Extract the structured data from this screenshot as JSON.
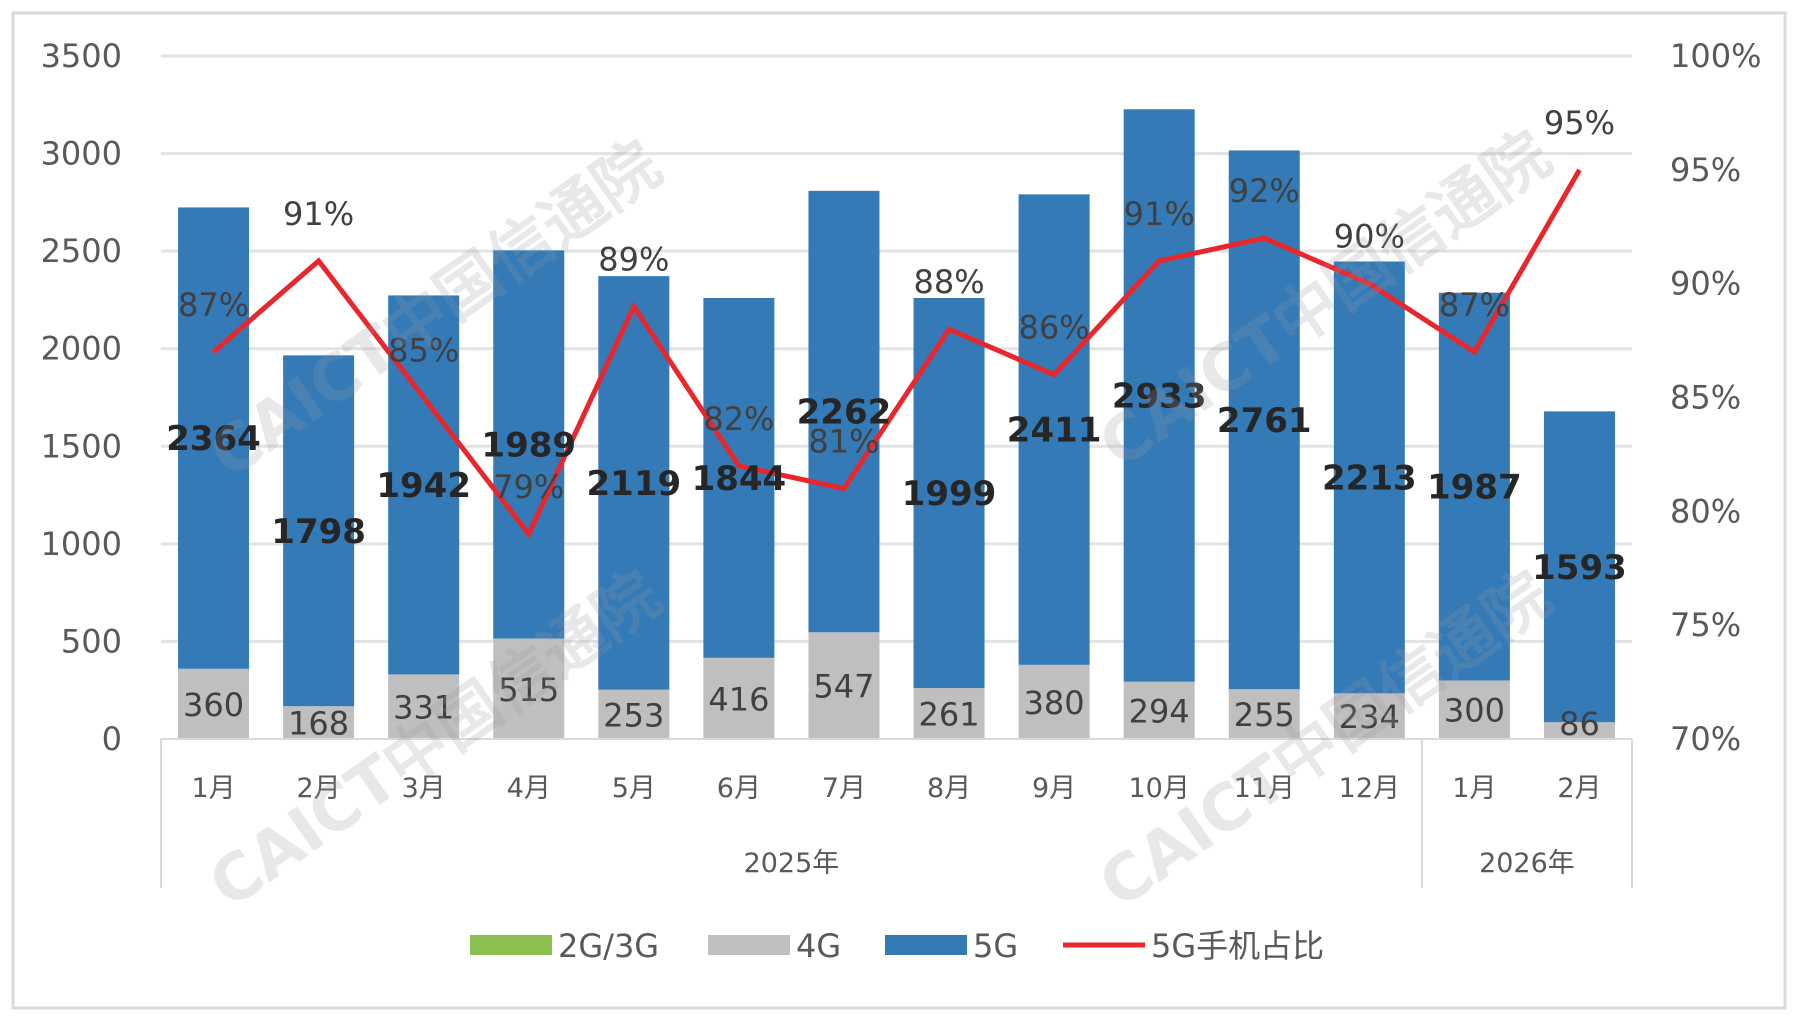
{
  "chart_data": {
    "type": "bar",
    "stacked": true,
    "categories": [
      "1月",
      "2月",
      "3月",
      "4月",
      "5月",
      "6月",
      "7月",
      "8月",
      "9月",
      "10月",
      "11月",
      "12月",
      "1月",
      "2月"
    ],
    "groups": [
      {
        "label": "2025年",
        "count": 12
      },
      {
        "label": "2026年",
        "count": 2
      }
    ],
    "series": [
      {
        "name": "2G/3G",
        "type": "bar",
        "color": "#8CC152",
        "values": [
          0,
          0,
          0,
          0,
          0,
          0,
          0,
          0,
          0,
          0,
          0,
          0,
          0,
          0
        ]
      },
      {
        "name": "4G",
        "type": "bar",
        "color": "#BFBFBF",
        "values": [
          360,
          168,
          331,
          515,
          253,
          416,
          547,
          261,
          380,
          294,
          255,
          234,
          300,
          86
        ]
      },
      {
        "name": "5G",
        "type": "bar",
        "color": "#337AB7",
        "values": [
          2364,
          1798,
          1942,
          1989,
          2119,
          1844,
          2262,
          1999,
          2411,
          2933,
          2761,
          2213,
          1987,
          1593
        ]
      },
      {
        "name": "5G手机占比",
        "type": "line",
        "axis": "right",
        "color": "#E8262B",
        "values": [
          87,
          91,
          85,
          79,
          89,
          82,
          81,
          88,
          86,
          91,
          92,
          90,
          87,
          95
        ]
      }
    ],
    "y_left": {
      "range": [
        0,
        3500
      ],
      "ticks": [
        "0",
        "500",
        "1000",
        "1500",
        "2000",
        "2500",
        "3000",
        "3500"
      ]
    },
    "y_right": {
      "range": [
        70,
        100
      ],
      "ticks": [
        "70%",
        "75%",
        "80%",
        "85%",
        "90%",
        "95%",
        "100%"
      ]
    },
    "grid": true,
    "legend_position": "bottom",
    "watermark": "CAICT中国信通院"
  }
}
